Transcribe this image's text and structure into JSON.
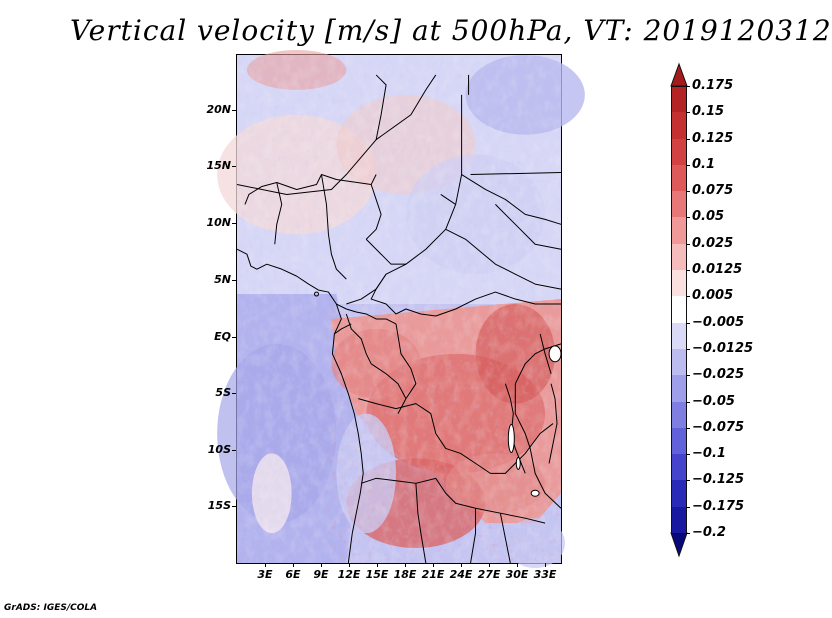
{
  "title": "Vertical velocity [m/s] at 500hPa, VT: 2019120312",
  "axes": {
    "lat_labels": [
      "20N",
      "15N",
      "10N",
      "5N",
      "EQ",
      "5S",
      "10S",
      "15S"
    ],
    "lon_labels": [
      "3E",
      "6E",
      "9E",
      "12E",
      "15E",
      "18E",
      "21E",
      "24E",
      "27E",
      "30E",
      "33E"
    ]
  },
  "colorbar": {
    "labels": [
      "0.175",
      "0.15",
      "0.125",
      "0.1",
      "0.075",
      "0.05",
      "0.025",
      "0.0125",
      "0.005",
      "−0.005",
      "−0.0125",
      "−0.025",
      "−0.05",
      "−0.075",
      "−0.1",
      "−0.125",
      "−0.175",
      "−0.2"
    ],
    "colors": [
      "#a51a1a",
      "#b52424",
      "#c53131",
      "#d34242",
      "#de5a5a",
      "#e87777",
      "#f19999",
      "#f6bcbc",
      "#fbe0e0",
      "#ffffff",
      "#dadaf7",
      "#bcbcf1",
      "#9e9eea",
      "#7f7fe2",
      "#6161d9",
      "#4444cc",
      "#2a2ab8",
      "#1818a0",
      "#08087a"
    ]
  },
  "footer": "GrADS: IGES/COLA"
}
